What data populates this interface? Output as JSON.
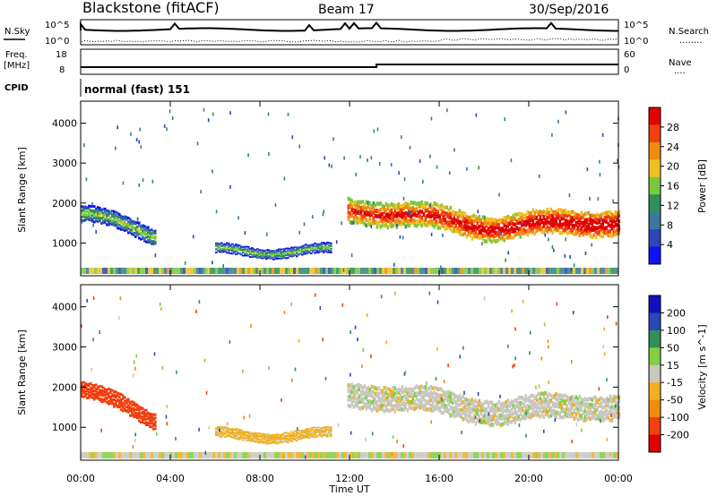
{
  "header": {
    "station": "Blackstone (fitACF)",
    "beam": "Beam 17",
    "date": "30/Sep/2016"
  },
  "top_panels": {
    "nsky": {
      "label": "N.Sky",
      "scale_top": "10^5",
      "scale_bottom": "10^0"
    },
    "nsearch": {
      "label": "N.Search",
      "scale_top": "10^5",
      "scale_bottom": "10^0",
      "legend_line": "........"
    },
    "freq": {
      "label_line1": "Freq.",
      "label_line2": "[MHz]",
      "scale_top": "18",
      "scale_bottom": "8"
    },
    "nave": {
      "label": "Nave",
      "scale_top": "60",
      "scale_bottom": "0",
      "legend_line": "...."
    },
    "cpid": {
      "label": "CPID",
      "value": "normal (fast) 151"
    }
  },
  "colors": {
    "power_scale": [
      "#1010ff",
      "#2a48b8",
      "#3a78a0",
      "#2f8f5a",
      "#7ac83c",
      "#f0c020",
      "#f08a10",
      "#f04010",
      "#e00000"
    ],
    "velocity_scale": [
      "#e00000",
      "#f04010",
      "#f08a10",
      "#f0b020",
      "#c8c8c0",
      "#80d040",
      "#2f8f5a",
      "#2a48b8",
      "#1010c0"
    ]
  },
  "chart_data": [
    {
      "type": "heatmap",
      "panel": "power",
      "ylabel": "Slant Range [km]",
      "yticks": [
        1000,
        2000,
        3000,
        4000
      ],
      "ylim": [
        180,
        4550
      ],
      "xlim": [
        0,
        24
      ],
      "colorbar": {
        "label": "Power [dB]",
        "ticks": [
          "4",
          "8",
          "12",
          "16",
          "20",
          "24",
          "28"
        ],
        "range": [
          0,
          32
        ]
      },
      "features": [
        {
          "t0": 0.0,
          "t1": 3.3,
          "r_start": 1750,
          "r_end": 1200,
          "width": 400,
          "value": 10
        },
        {
          "t0": 6.0,
          "t1": 11.2,
          "r_start": 800,
          "r_end": 800,
          "width": 250,
          "value": 9
        },
        {
          "t0": 11.9,
          "t1": 24.0,
          "r_start": 1700,
          "r_end": 1400,
          "width": 600,
          "value": 22
        }
      ]
    },
    {
      "type": "heatmap",
      "panel": "velocity",
      "ylabel": "Slant Range [km]",
      "yticks": [
        1000,
        2000,
        3000,
        4000
      ],
      "ylim": [
        180,
        4550
      ],
      "xlim": [
        0,
        24
      ],
      "xticks": [
        "00:00",
        "04:00",
        "08:00",
        "12:00",
        "16:00",
        "20:00",
        "00:00"
      ],
      "xlabel": "Time UT",
      "colorbar": {
        "label": "Velocity [m s^-1]",
        "ticks": [
          "200",
          "100",
          "50",
          "15",
          "-15",
          "-50",
          "-100",
          "-200"
        ]
      },
      "features": [
        {
          "t0": 0.0,
          "t1": 3.3,
          "r_start": 1950,
          "r_end": 1200,
          "width": 400,
          "value": -150
        },
        {
          "t0": 6.0,
          "t1": 11.2,
          "r_start": 800,
          "r_end": 800,
          "width": 250,
          "value": -30
        },
        {
          "t0": 11.9,
          "t1": 24.0,
          "r_start": 1700,
          "r_end": 1400,
          "width": 600,
          "value": 0
        }
      ]
    }
  ]
}
